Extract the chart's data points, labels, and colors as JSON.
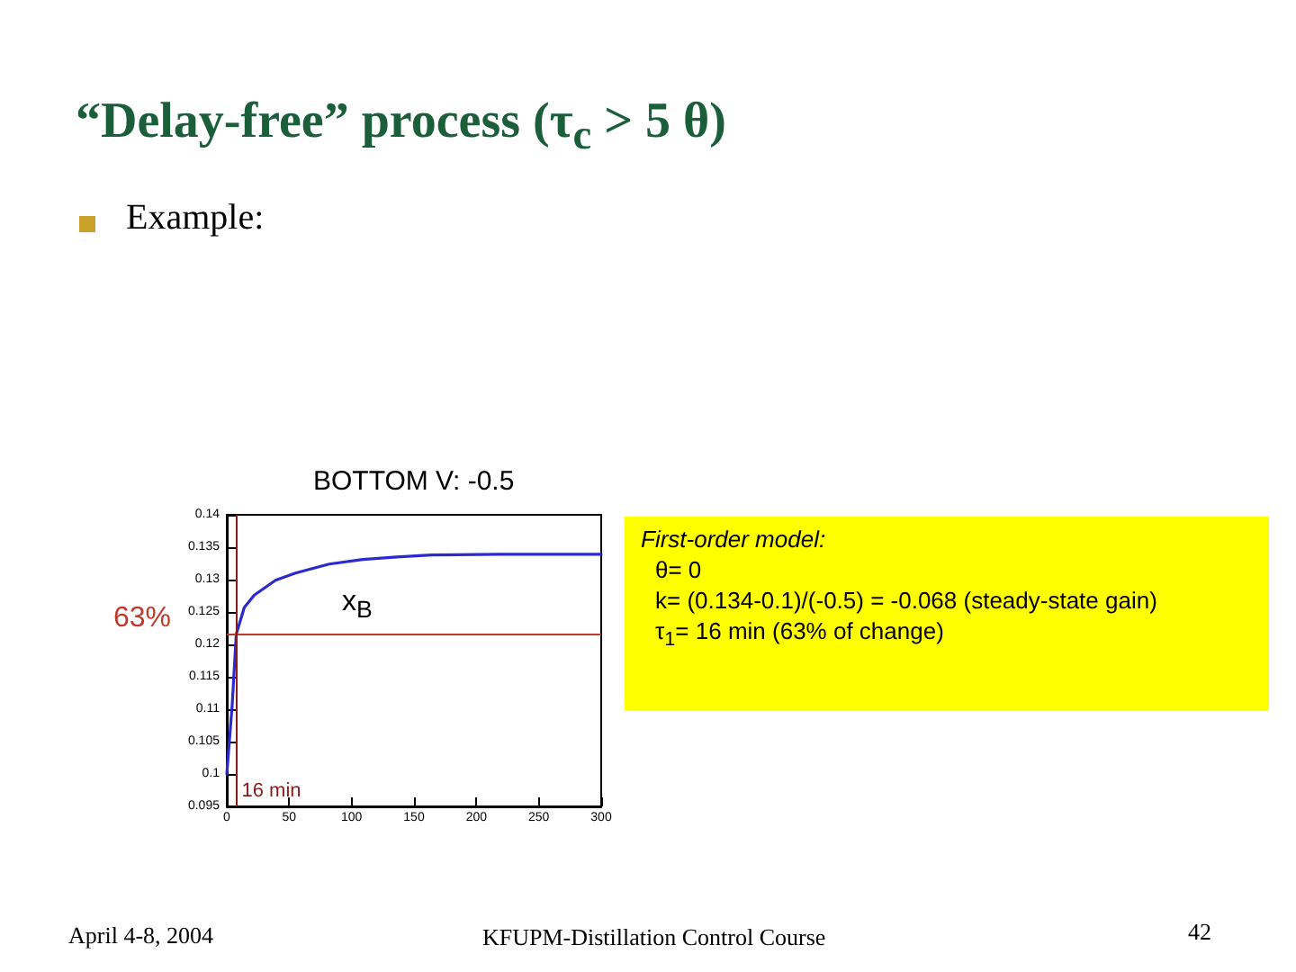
{
  "chart_data": {
    "type": "line",
    "title": "“Delay-free” process (τ$_{c}$ > 5 θ)",
    "subtitle": "Example:",
    "x": [
      0,
      4.3,
      7.6,
      14,
      22,
      39,
      55,
      82,
      109,
      136,
      164,
      218,
      300
    ],
    "series": [
      {
        "color": "#2a2ad0",
        "values": [
          0.1,
          0.1106,
          0.1216,
          0.1257,
          0.1276,
          0.1299,
          0.131,
          0.1324,
          0.1331,
          0.1335,
          0.1338,
          0.1339,
          0.1339
        ]
      }
    ],
    "xlim": [
      0,
      300
    ],
    "xticks": [
      0,
      50,
      100,
      150,
      200,
      250,
      300
    ],
    "ylim": [
      0.095,
      0.14
    ],
    "yticks": [
      0.095,
      0.1,
      0.105,
      0.11,
      0.115,
      0.12,
      0.125,
      0.13,
      0.135,
      0.14
    ],
    "marker": "none",
    "line_style": "solid",
    "grid": false,
    "ref_lines": [
      {
        "axis": "y",
        "value": 0.1216,
        "color": "#c0392b"
      },
      {
        "axis": "x",
        "value": 7.6,
        "label": "16 min",
        "color": "#8b1a1a"
      }
    ],
    "annotations": [
      "63%",
      "BOTTOM V: -0.5",
      "x$_{B}$",
      "First-order model:",
      "θ= 0",
      "k= (0.134-0.1)/(-0.5) = -0.068 (steady-state gain)",
      "τ$_{1}$= 16 min (63% of change)",
      "April 4-8, 2004",
      "KFUPM-Distillation Control Course",
      "42"
    ]
  }
}
